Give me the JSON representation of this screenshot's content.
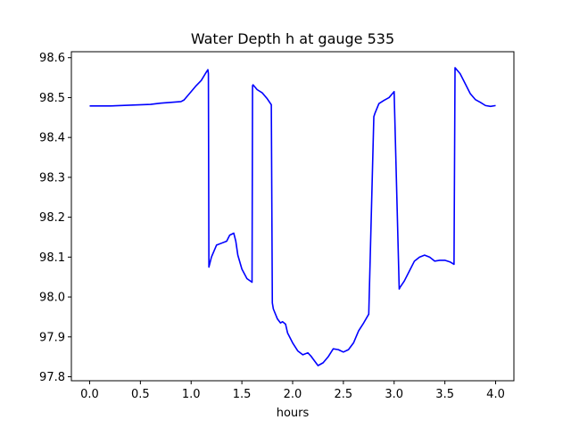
{
  "chart_data": {
    "type": "line",
    "title": "Water Depth h at gauge 535",
    "xlabel": "hours",
    "ylabel": "",
    "xlim": [
      -0.18,
      4.18
    ],
    "ylim": [
      97.79,
      98.615
    ],
    "xticks": [
      0.0,
      0.5,
      1.0,
      1.5,
      2.0,
      2.5,
      3.0,
      3.5,
      4.0
    ],
    "xtick_labels": [
      "0.0",
      "0.5",
      "1.0",
      "1.5",
      "2.0",
      "2.5",
      "3.0",
      "3.5",
      "4.0"
    ],
    "yticks": [
      97.8,
      97.9,
      98.0,
      98.1,
      98.2,
      98.3,
      98.4,
      98.5,
      98.6
    ],
    "ytick_labels": [
      "97.8",
      "97.9",
      "98.0",
      "98.1",
      "98.2",
      "98.3",
      "98.4",
      "98.5",
      "98.6"
    ],
    "grid": false,
    "series": [
      {
        "color": "#0000ff",
        "x": [
          0.0,
          0.2,
          0.4,
          0.6,
          0.7,
          0.8,
          0.9,
          0.93,
          1.0,
          1.05,
          1.1,
          1.14,
          1.165,
          1.17,
          1.175,
          1.2,
          1.25,
          1.3,
          1.35,
          1.38,
          1.42,
          1.44,
          1.46,
          1.5,
          1.55,
          1.6,
          1.605,
          1.61,
          1.65,
          1.7,
          1.75,
          1.79,
          1.8,
          1.81,
          1.85,
          1.88,
          1.9,
          1.93,
          1.95,
          2.0,
          2.05,
          2.1,
          2.15,
          2.18,
          2.2,
          2.25,
          2.3,
          2.35,
          2.4,
          2.45,
          2.5,
          2.55,
          2.6,
          2.65,
          2.7,
          2.75,
          2.8,
          2.81,
          2.85,
          2.9,
          2.95,
          3.0,
          3.05,
          3.06,
          3.1,
          3.15,
          3.2,
          3.25,
          3.3,
          3.35,
          3.4,
          3.45,
          3.5,
          3.55,
          3.59,
          3.6,
          3.65,
          3.7,
          3.75,
          3.8,
          3.85,
          3.9,
          3.95,
          4.0
        ],
        "y": [
          98.479,
          98.479,
          98.481,
          98.483,
          98.486,
          98.488,
          98.49,
          98.494,
          98.515,
          98.53,
          98.543,
          98.56,
          98.57,
          98.56,
          98.075,
          98.1,
          98.13,
          98.135,
          98.14,
          98.155,
          98.16,
          98.14,
          98.105,
          98.07,
          98.046,
          98.037,
          98.53,
          98.532,
          98.52,
          98.512,
          98.497,
          98.482,
          97.985,
          97.97,
          97.945,
          97.935,
          97.938,
          97.932,
          97.91,
          97.885,
          97.865,
          97.855,
          97.86,
          97.852,
          97.845,
          97.828,
          97.835,
          97.85,
          97.87,
          97.868,
          97.862,
          97.868,
          97.885,
          97.915,
          97.935,
          97.957,
          98.452,
          98.46,
          98.485,
          98.493,
          98.5,
          98.515,
          98.02,
          98.025,
          98.04,
          98.065,
          98.09,
          98.1,
          98.105,
          98.1,
          98.09,
          98.092,
          98.092,
          98.088,
          98.082,
          98.575,
          98.56,
          98.535,
          98.51,
          98.495,
          98.488,
          98.48,
          98.478,
          98.48
        ]
      }
    ]
  }
}
